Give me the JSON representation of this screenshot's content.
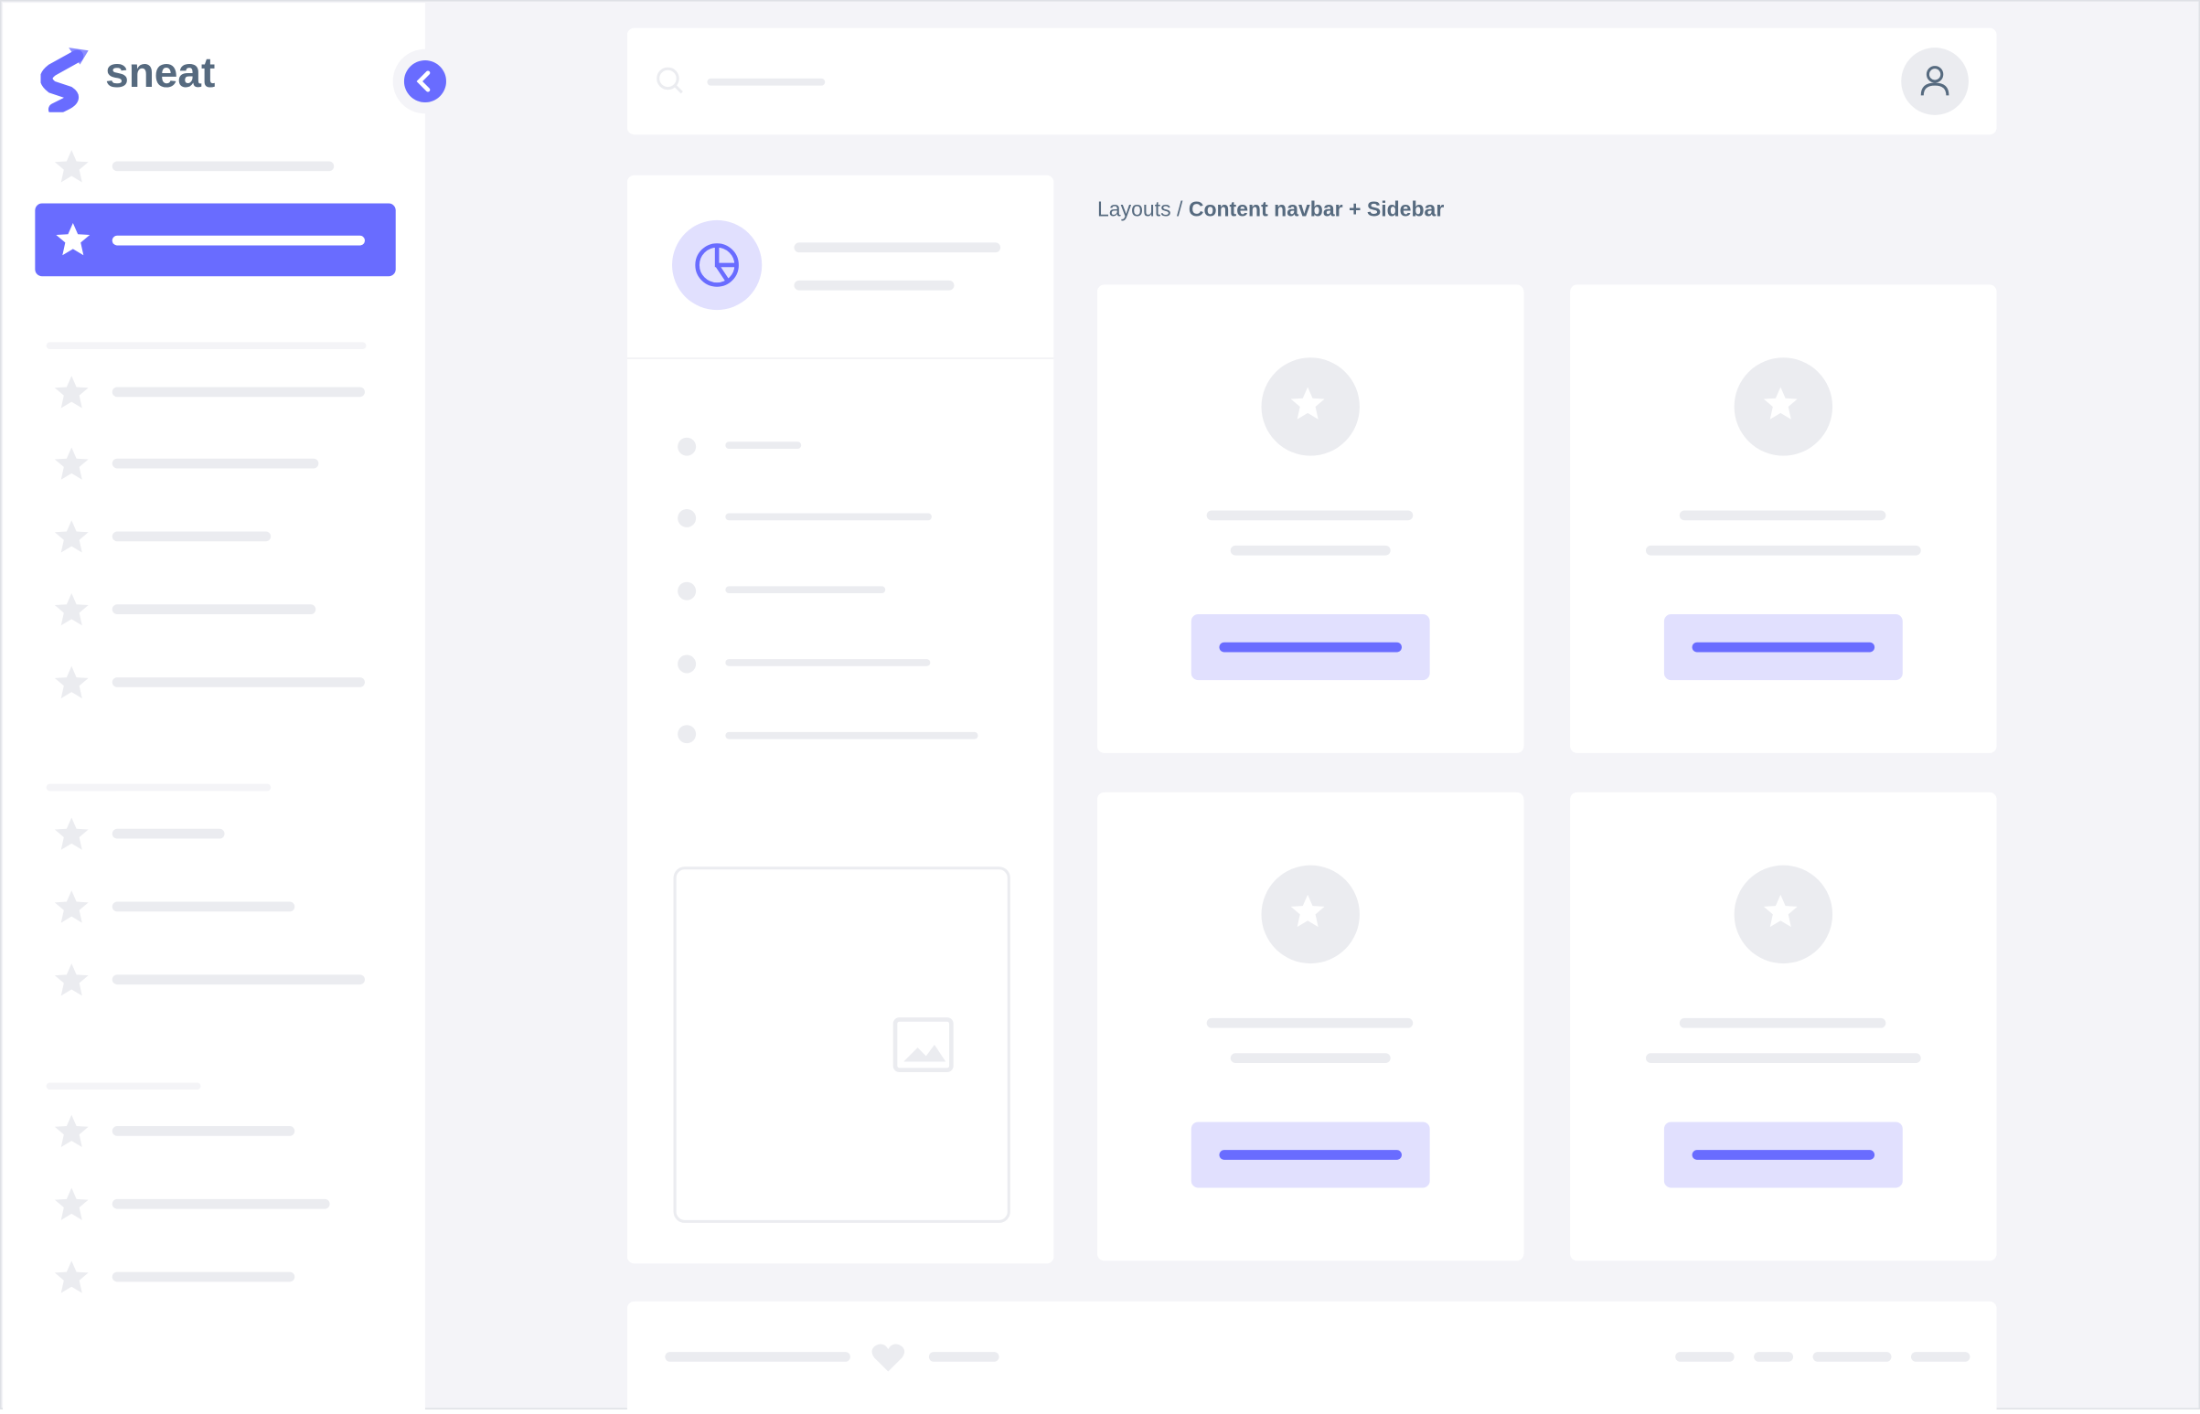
{
  "brand": {
    "name": "sneat",
    "accent": "#696cff"
  },
  "breadcrumb": {
    "parent": "Layouts",
    "separator": "/",
    "current": "Content navbar + Sidebar"
  },
  "icons": {
    "search": "search-icon",
    "user": "user-icon",
    "collapse": "chevron-left-icon",
    "menu": "star-icon",
    "chart": "pie-chart-icon",
    "image": "image-icon",
    "heart": "heart-icon"
  }
}
